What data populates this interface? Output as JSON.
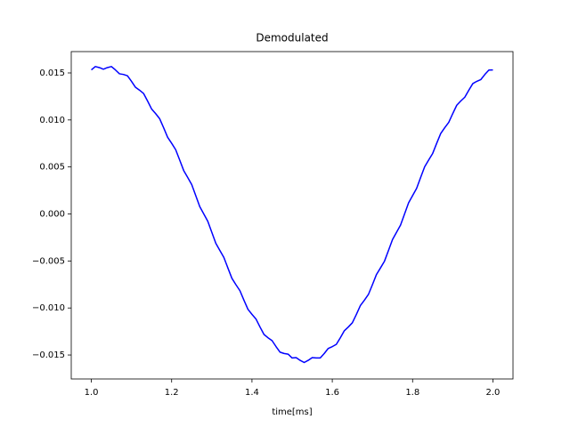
{
  "chart_data": {
    "type": "line",
    "title": "Demodulated",
    "x_label": "time[ms]",
    "x": [
      1.0,
      1.01,
      1.02,
      1.03,
      1.04,
      1.05,
      1.06,
      1.07,
      1.08,
      1.09,
      1.1,
      1.11,
      1.12,
      1.13,
      1.14,
      1.15,
      1.16,
      1.17,
      1.18,
      1.19,
      1.2,
      1.21,
      1.22,
      1.23,
      1.24,
      1.25,
      1.26,
      1.27,
      1.28,
      1.29,
      1.3,
      1.31,
      1.32,
      1.33,
      1.34,
      1.35,
      1.36,
      1.37,
      1.38,
      1.39,
      1.4,
      1.41,
      1.42,
      1.43,
      1.44,
      1.45,
      1.46,
      1.47,
      1.48,
      1.49,
      1.5,
      1.51,
      1.52,
      1.53,
      1.54,
      1.55,
      1.56,
      1.57,
      1.58,
      1.59,
      1.6,
      1.61,
      1.62,
      1.63,
      1.64,
      1.65,
      1.66,
      1.67,
      1.68,
      1.69,
      1.7,
      1.71,
      1.72,
      1.73,
      1.74,
      1.75,
      1.76,
      1.77,
      1.78,
      1.79,
      1.8,
      1.81,
      1.82,
      1.83,
      1.84,
      1.85,
      1.86,
      1.87,
      1.88,
      1.89,
      1.9,
      1.91,
      1.92,
      1.93,
      1.94,
      1.95,
      1.96,
      1.97,
      1.98,
      1.99,
      2.0
    ],
    "series": [
      {
        "color": "#0000ff",
        "values": [
          0.01532,
          0.01568,
          0.01557,
          0.0154,
          0.01557,
          0.01568,
          0.01532,
          0.01491,
          0.01484,
          0.0147,
          0.01411,
          0.01347,
          0.01317,
          0.01282,
          0.01202,
          0.01117,
          0.01068,
          0.01014,
          0.00917,
          0.00816,
          0.00752,
          0.00684,
          0.00574,
          0.00462,
          0.00388,
          0.00312,
          0.00195,
          0.00078,
          0,
          -0.00078,
          -0.00195,
          -0.00312,
          -0.00388,
          -0.00462,
          -0.00574,
          -0.00684,
          -0.00752,
          -0.00816,
          -0.00917,
          -0.01014,
          -0.01068,
          -0.01117,
          -0.01202,
          -0.01282,
          -0.01317,
          -0.01347,
          -0.01411,
          -0.0147,
          -0.01484,
          -0.01491,
          -0.01532,
          -0.01528,
          -0.01557,
          -0.0158,
          -0.01557,
          -0.01528,
          -0.01532,
          -0.01531,
          -0.01484,
          -0.0143,
          -0.01411,
          -0.01387,
          -0.01317,
          -0.01242,
          -0.01202,
          -0.01157,
          -0.01068,
          -0.00974,
          -0.00917,
          -0.00856,
          -0.00752,
          -0.00644,
          -0.00574,
          -0.00502,
          -0.00388,
          -0.00272,
          -0.00195,
          -0.00118,
          0,
          0.00118,
          0.00195,
          0.00272,
          0.00388,
          0.00502,
          0.00574,
          0.00644,
          0.00752,
          0.00856,
          0.00917,
          0.00974,
          0.01068,
          0.01157,
          0.01202,
          0.01242,
          0.01317,
          0.01387,
          0.01411,
          0.0143,
          0.01484,
          0.01531,
          0.01532
        ]
      }
    ],
    "xlim": [
      0.95,
      2.05
    ],
    "xticks": [
      {
        "value": 1.0,
        "label": "1.0"
      },
      {
        "value": 1.2,
        "label": "1.2"
      },
      {
        "value": 1.4,
        "label": "1.4"
      },
      {
        "value": 1.6,
        "label": "1.6"
      },
      {
        "value": 1.8,
        "label": "1.8"
      },
      {
        "value": 2.0,
        "label": "2.0"
      }
    ],
    "ylim": [
      -0.01755,
      0.01727
    ],
    "yticks": [
      {
        "value": -0.015,
        "label": "−0.015"
      },
      {
        "value": -0.01,
        "label": "−0.010"
      },
      {
        "value": -0.005,
        "label": "−0.005"
      },
      {
        "value": 0,
        "label": "0.000"
      },
      0.005,
      {
        "value": 0.01,
        "label": "0.010"
      },
      0.015
    ]
  }
}
